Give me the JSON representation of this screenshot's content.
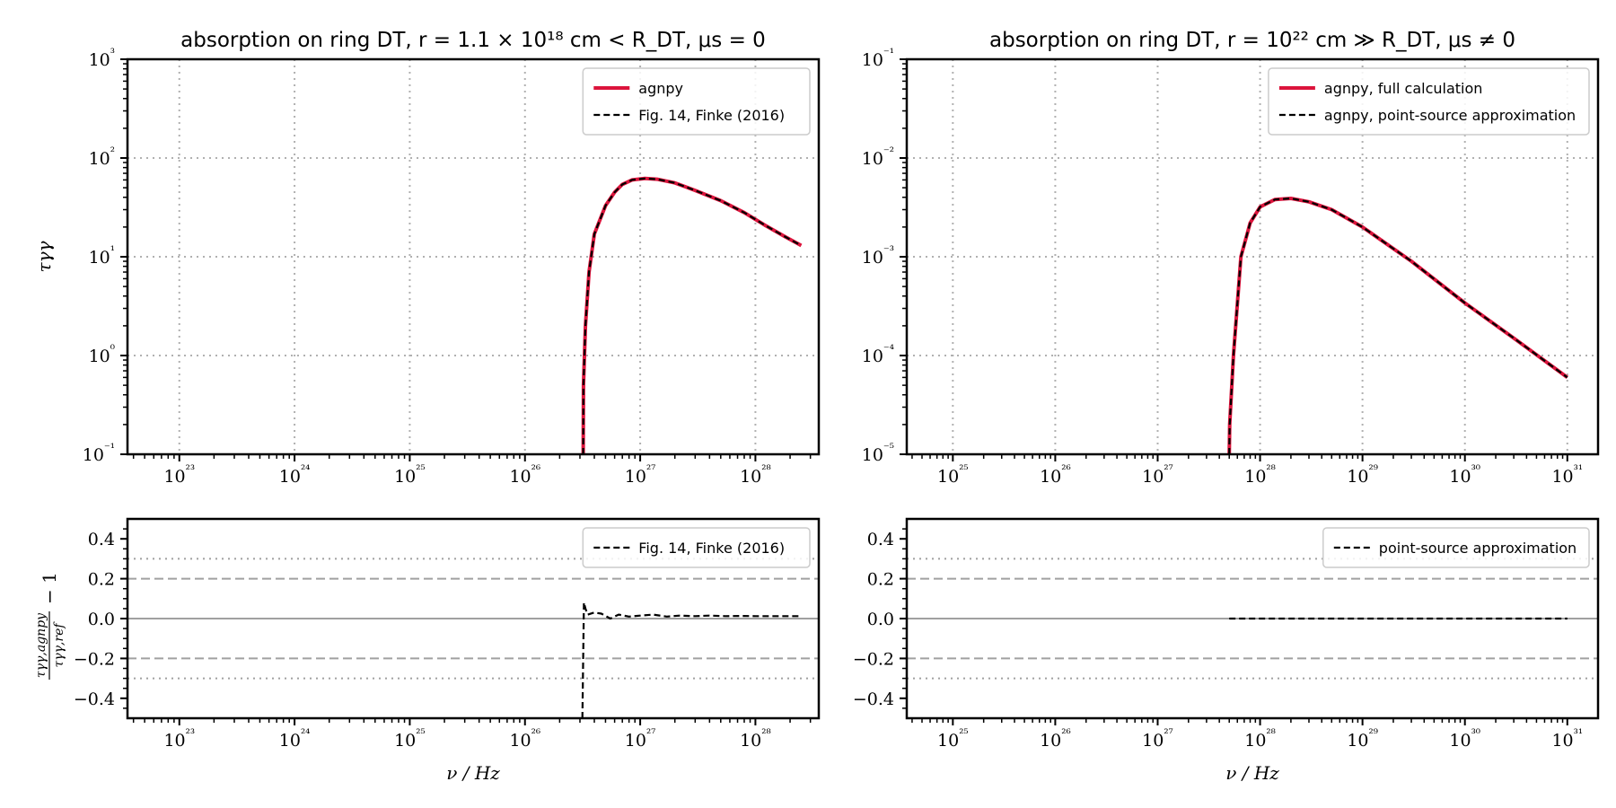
{
  "figure": {
    "background": "#ffffff"
  },
  "style": {
    "agnpy_color": "#dc143c",
    "reference_color": "#000000",
    "grid_color": "#b0b0b0",
    "guide_color": "#a0a0a0"
  },
  "chart_data": [
    {
      "id": "tl",
      "type": "line",
      "title": "absorption on ring DT, r = 1.1 × 10¹⁸ cm < R_DT, μs = 0",
      "xlabel": "",
      "ylabel": "τγγ",
      "xscale": "log",
      "yscale": "log",
      "xlim_log10": [
        22.55,
        28.55
      ],
      "ylim_log10": [
        -1,
        3
      ],
      "xticks": [
        23,
        24,
        25,
        26,
        27,
        28
      ],
      "yticks": [
        -1,
        0,
        1,
        2,
        3
      ],
      "grid": true,
      "legend": "upper right",
      "series": [
        {
          "name": "agnpy",
          "style": "solid",
          "color": "#dc143c",
          "x": [
            3.2e+26,
            3.22e+26,
            3.35e+26,
            3.6e+26,
            4e+26,
            5e+26,
            6e+26,
            7e+26,
            8.5e+26,
            1.1e+27,
            1.4e+27,
            2e+27,
            3e+27,
            5e+27,
            8e+27,
            1.2e+28,
            1.8e+28,
            2.5e+28
          ],
          "y": [
            0.1,
            0.5,
            2.0,
            7.0,
            17,
            33,
            45,
            54,
            60,
            62,
            61,
            56,
            47,
            37,
            28,
            21,
            16,
            13
          ]
        },
        {
          "name": "Fig. 14, Finke (2016)",
          "style": "dashed",
          "color": "#000000",
          "x": [
            3.2e+26,
            3.22e+26,
            3.35e+26,
            3.6e+26,
            4e+26,
            5e+26,
            6e+26,
            7e+26,
            8.5e+26,
            1.1e+27,
            1.4e+27,
            2e+27,
            3e+27,
            5e+27,
            8e+27,
            1.2e+28,
            1.8e+28,
            2.5e+28
          ],
          "y": [
            0.1,
            0.5,
            2.0,
            7.0,
            17,
            33,
            45,
            54,
            60,
            62,
            61,
            56,
            47,
            37,
            28,
            21,
            16,
            13
          ]
        }
      ]
    },
    {
      "id": "tr",
      "type": "line",
      "title": "absorption on ring DT, r = 10²² cm ≫ R_DT, μs ≠ 0",
      "xlabel": "",
      "ylabel": "",
      "xscale": "log",
      "yscale": "log",
      "xlim_log10": [
        24.55,
        31.3
      ],
      "ylim_log10": [
        -5,
        -1
      ],
      "xticks": [
        25,
        26,
        27,
        28,
        29,
        30,
        31
      ],
      "yticks": [
        -5,
        -4,
        -3,
        -2,
        -1
      ],
      "grid": true,
      "legend": "upper right",
      "series": [
        {
          "name": "agnpy, full calculation",
          "style": "solid",
          "color": "#dc143c",
          "x": [
            5e+27,
            5.05e+27,
            5.5e+27,
            6.5e+27,
            8e+27,
            1e+28,
            1.4e+28,
            2e+28,
            3e+28,
            5e+28,
            1e+29,
            3e+29,
            1e+30,
            3e+30,
            1e+31
          ],
          "y": [
            1e-05,
            2e-05,
            0.0001,
            0.001,
            0.0022,
            0.0032,
            0.0038,
            0.0039,
            0.0036,
            0.003,
            0.002,
            0.0009,
            0.00034,
            0.00015,
            6e-05
          ]
        },
        {
          "name": "agnpy, point-source approximation",
          "style": "dashed",
          "color": "#000000",
          "x": [
            5e+27,
            5.05e+27,
            5.5e+27,
            6.5e+27,
            8e+27,
            1e+28,
            1.4e+28,
            2e+28,
            3e+28,
            5e+28,
            1e+29,
            3e+29,
            1e+30,
            3e+30,
            1e+31
          ],
          "y": [
            1e-05,
            2e-05,
            0.0001,
            0.001,
            0.0022,
            0.0032,
            0.0038,
            0.0039,
            0.0036,
            0.003,
            0.002,
            0.0009,
            0.00034,
            0.00015,
            6e-05
          ]
        }
      ]
    },
    {
      "id": "bl",
      "type": "line",
      "title": "",
      "xlabel": "ν / Hz",
      "ylabel": "τγγ,agnpy / τγγ,ref − 1",
      "ylabel_numerator": "τγγ,agnpy",
      "ylabel_denominator": "τγγ,ref",
      "ylabel_suffix": "− 1",
      "xscale": "log",
      "yscale": "linear",
      "xlim_log10": [
        22.55,
        28.55
      ],
      "ylim": [
        -0.5,
        0.5
      ],
      "xticks": [
        23,
        24,
        25,
        26,
        27,
        28
      ],
      "yticks": [
        -0.4,
        -0.2,
        0.0,
        0.2,
        0.4
      ],
      "ytick_labels": [
        "−0.4",
        "−0.2",
        "0.0",
        "0.2",
        "0.4"
      ],
      "grid": false,
      "guides": {
        "solid": [
          0.0
        ],
        "dashed": [
          0.2,
          -0.2
        ],
        "dotted": [
          0.3,
          -0.3
        ]
      },
      "legend": "upper right",
      "series": [
        {
          "name": "Fig. 14, Finke (2016)",
          "style": "dashed",
          "color": "#000000",
          "x": [
            3.15e+26,
            3.25e+26,
            3.35e+26,
            3.5e+26,
            4e+26,
            4.6e+26,
            5.5e+26,
            6.5e+26,
            8e+26,
            1e+27,
            1.3e+27,
            1.7e+27,
            2.2e+27,
            3e+27,
            4e+27,
            5.5e+27,
            7.5e+27,
            1e+28,
            1.5e+28,
            2.5e+28
          ],
          "y": [
            -0.5,
            0.08,
            0.05,
            0.02,
            0.03,
            0.025,
            0.0,
            0.02,
            0.01,
            0.015,
            0.02,
            0.01,
            0.015,
            0.012,
            0.015,
            0.012,
            0.013,
            0.012,
            0.012,
            0.012
          ]
        }
      ]
    },
    {
      "id": "br",
      "type": "line",
      "title": "",
      "xlabel": "ν / Hz",
      "ylabel": "",
      "xscale": "log",
      "yscale": "linear",
      "xlim_log10": [
        24.55,
        31.3
      ],
      "ylim": [
        -0.5,
        0.5
      ],
      "xticks": [
        25,
        26,
        27,
        28,
        29,
        30,
        31
      ],
      "yticks": [
        -0.4,
        -0.2,
        0.0,
        0.2,
        0.4
      ],
      "ytick_labels": [
        "−0.4",
        "−0.2",
        "0.0",
        "0.2",
        "0.4"
      ],
      "grid": false,
      "guides": {
        "solid": [
          0.0
        ],
        "dashed": [
          0.2,
          -0.2
        ],
        "dotted": [
          0.3,
          -0.3
        ]
      },
      "legend": "upper right",
      "series": [
        {
          "name": "point-source approximation",
          "style": "dashed",
          "color": "#000000",
          "x": [
            5e+27,
            1e+28,
            1e+29,
            1e+30,
            1e+31
          ],
          "y": [
            0.0,
            0.0,
            0.0,
            0.0,
            0.0
          ]
        }
      ]
    }
  ]
}
